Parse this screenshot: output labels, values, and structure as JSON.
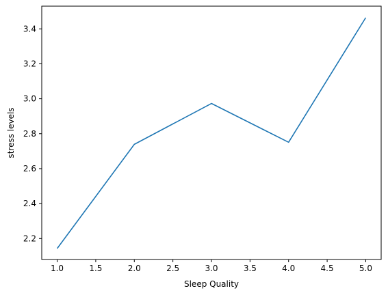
{
  "chart_data": {
    "type": "line",
    "title": "",
    "xlabel": "Sleep Quality",
    "ylabel": "stress levels",
    "xlim": [
      0.8,
      5.2
    ],
    "ylim": [
      2.08,
      3.53
    ],
    "xticks": [
      1.0,
      1.5,
      2.0,
      2.5,
      3.0,
      3.5,
      4.0,
      4.5,
      5.0
    ],
    "xtick_labels": [
      "1.0",
      "1.5",
      "2.0",
      "2.5",
      "3.0",
      "3.5",
      "4.0",
      "4.5",
      "5.0"
    ],
    "yticks": [
      2.2,
      2.4,
      2.6,
      2.8,
      3.0,
      3.2,
      3.4
    ],
    "ytick_labels": [
      "2.2",
      "2.4",
      "2.6",
      "2.8",
      "3.0",
      "3.2",
      "3.4"
    ],
    "grid": false,
    "series": [
      {
        "x": [
          1.0,
          2.0,
          3.0,
          4.0,
          5.0
        ],
        "values": [
          2.143,
          2.739,
          2.973,
          2.751,
          3.464
        ],
        "color": "#1f77b4"
      }
    ]
  }
}
